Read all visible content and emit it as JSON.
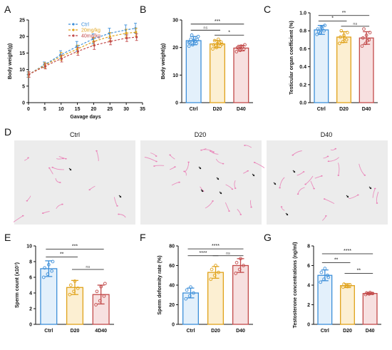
{
  "panel_letters": [
    "A",
    "B",
    "C",
    "D",
    "E",
    "F",
    "G"
  ],
  "colors": {
    "ctrl": "#3d8fd9",
    "d20": "#e0a21a",
    "d40": "#c24a4a",
    "ctrl_fill": "#e3f0fb",
    "d20_fill": "#fcefd2",
    "d40_fill": "#f7e0e0",
    "micro_bg": "#ececec",
    "micro_sperm": "#ea7fb6",
    "micro_arrow": "#111111"
  },
  "chart_data": [
    {
      "id": "A",
      "type": "line",
      "xlabel": "Gavage days",
      "ylabel": "Body weight(g)",
      "xlim": [
        0,
        35
      ],
      "ylim": [
        0,
        25
      ],
      "xticks": [
        "0",
        "5",
        "10",
        "15",
        "20",
        "25",
        "30",
        "35"
      ],
      "yticks": [
        "0",
        "5",
        "10",
        "15",
        "20",
        "25"
      ],
      "x": [
        0,
        5,
        10,
        15,
        20,
        25,
        30,
        33
      ],
      "legend_position": "top-right",
      "series": [
        {
          "name": "Ctrl",
          "color_key": "ctrl",
          "values": [
            8.5,
            11.5,
            14.5,
            17.0,
            19.3,
            21.0,
            22.0,
            22.5
          ],
          "err": [
            0.8,
            0.8,
            1.2,
            1.5,
            1.5,
            1.5,
            1.5,
            1.5
          ]
        },
        {
          "name": "20mg/kg",
          "color_key": "d20",
          "values": [
            8.5,
            11.3,
            14.0,
            16.2,
            18.5,
            20.0,
            21.0,
            21.3
          ],
          "err": [
            0.8,
            0.8,
            1.2,
            1.2,
            1.2,
            1.2,
            1.2,
            1.2
          ]
        },
        {
          "name": "40mg/kg",
          "color_key": "d40",
          "values": [
            8.5,
            11.0,
            13.3,
            15.5,
            17.3,
            18.5,
            19.5,
            19.8
          ],
          "err": [
            0.8,
            0.8,
            1.0,
            1.2,
            1.2,
            1.0,
            1.0,
            1.0
          ]
        }
      ]
    },
    {
      "id": "B",
      "type": "bar",
      "ylabel": "Body weight(g)",
      "categories": [
        "Ctrl",
        "D20",
        "D40"
      ],
      "values": [
        22.5,
        21.3,
        19.8
      ],
      "err": [
        1.5,
        1.3,
        1.0
      ],
      "points": [
        [
          20.5,
          21.0,
          21.5,
          22.0,
          22.5,
          22.8,
          23.0,
          23.5,
          24.0,
          24.5,
          22.2,
          21.8
        ],
        [
          19.5,
          20.0,
          20.5,
          21.0,
          21.5,
          22.0,
          22.5,
          23.0,
          21.2,
          20.8,
          21.7
        ],
        [
          18.5,
          19.0,
          19.5,
          20.0,
          20.5,
          21.0,
          19.8,
          20.2
        ]
      ],
      "ylim": [
        0,
        30
      ],
      "yticks": [
        "0",
        "10",
        "20",
        "30"
      ],
      "sig": [
        {
          "from": 0,
          "to": 2,
          "label": "***",
          "y": 28.5
        },
        {
          "from": 0,
          "to": 1,
          "label": "ns",
          "y": 26.3
        },
        {
          "from": 1,
          "to": 2,
          "label": "*",
          "y": 24.5
        }
      ]
    },
    {
      "id": "C",
      "type": "bar",
      "ylabel": "Testicular organ coefficient (%)",
      "categories": [
        "Ctrl",
        "D20",
        "D40"
      ],
      "values": [
        0.81,
        0.73,
        0.72
      ],
      "err": [
        0.05,
        0.06,
        0.07
      ],
      "points": [
        [
          0.76,
          0.78,
          0.8,
          0.82,
          0.84,
          0.86,
          0.79,
          0.83
        ],
        [
          0.66,
          0.68,
          0.7,
          0.73,
          0.75,
          0.78,
          0.8,
          0.72
        ],
        [
          0.63,
          0.66,
          0.7,
          0.72,
          0.75,
          0.78,
          0.82,
          0.69
        ]
      ],
      "ylim": [
        0,
        1.0
      ],
      "yticks": [
        "0.0",
        "0.2",
        "0.4",
        "0.6",
        "0.8",
        "1.0"
      ],
      "sig": [
        {
          "from": 0,
          "to": 2,
          "label": "**",
          "y": 0.97
        },
        {
          "from": 0,
          "to": 1,
          "label": "*",
          "y": 0.91
        },
        {
          "from": 1,
          "to": 2,
          "label": "ns",
          "y": 0.85
        }
      ]
    },
    {
      "id": "E",
      "type": "bar",
      "ylabel": "Sperm count (x10⁷)",
      "categories": [
        "Ctrl",
        "D20",
        "4D40"
      ],
      "values": [
        7.1,
        4.7,
        3.8
      ],
      "err": [
        1.0,
        0.9,
        1.2
      ],
      "points": [
        [
          6.0,
          6.4,
          6.8,
          7.2,
          7.6,
          8.0
        ],
        [
          3.8,
          4.2,
          4.6,
          5.0,
          5.5
        ],
        [
          2.5,
          3.0,
          3.6,
          4.2,
          4.8,
          5.2
        ]
      ],
      "ylim": [
        0,
        10
      ],
      "yticks": [
        "0",
        "2",
        "4",
        "6",
        "8",
        "10"
      ],
      "sig": [
        {
          "from": 0,
          "to": 2,
          "label": "***",
          "y": 9.6
        },
        {
          "from": 0,
          "to": 1,
          "label": "**",
          "y": 8.6
        },
        {
          "from": 1,
          "to": 2,
          "label": "ns",
          "y": 7.0
        }
      ]
    },
    {
      "id": "F",
      "type": "bar",
      "ylabel": "Sperm deformity rate (%)",
      "categories": [
        "Ctrl",
        "D20",
        "D40"
      ],
      "values": [
        32,
        53,
        60
      ],
      "err": [
        5,
        6,
        7
      ],
      "points": [
        [
          26,
          29,
          32,
          35,
          38
        ],
        [
          46,
          50,
          53,
          56,
          60
        ],
        [
          52,
          56,
          60,
          63,
          67
        ]
      ],
      "ylim": [
        0,
        80
      ],
      "yticks": [
        "0",
        "20",
        "40",
        "60",
        "80"
      ],
      "sig": [
        {
          "from": 0,
          "to": 2,
          "label": "****",
          "y": 77
        },
        {
          "from": 0,
          "to": 1,
          "label": "****",
          "y": 70
        },
        {
          "from": 1,
          "to": 2,
          "label": "ns",
          "y": 70
        }
      ]
    },
    {
      "id": "G",
      "type": "bar",
      "ylabel": "Testosterone concentrations (ng/ml)",
      "categories": [
        "Ctrl",
        "D20",
        "D40"
      ],
      "values": [
        5.0,
        3.95,
        3.15
      ],
      "err": [
        0.55,
        0.2,
        0.1
      ],
      "points": [
        [
          4.3,
          4.6,
          5.0,
          5.3,
          5.7,
          4.8
        ],
        [
          3.8,
          3.9,
          4.0,
          4.1,
          3.85
        ],
        [
          3.05,
          3.1,
          3.15,
          3.2,
          3.25
        ]
      ],
      "ylim": [
        0,
        8
      ],
      "yticks": [
        "0",
        "2",
        "4",
        "6",
        "8"
      ],
      "sig": [
        {
          "from": 0,
          "to": 2,
          "label": "****",
          "y": 7.2
        },
        {
          "from": 0,
          "to": 1,
          "label": "**",
          "y": 6.3
        },
        {
          "from": 1,
          "to": 2,
          "label": "**",
          "y": 5.2
        }
      ]
    }
  ],
  "micrographs": {
    "labels": [
      "Ctrl",
      "D20",
      "D40"
    ]
  }
}
